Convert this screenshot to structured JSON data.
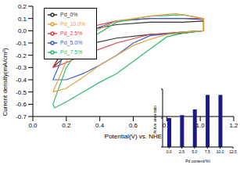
{
  "chart_data": [
    {
      "type": "line",
      "x_label": "Potential(V) vs. NHE",
      "y_label": "Current density(mA/cm²)",
      "xlim": [
        0,
        1.2
      ],
      "xticks": [
        {
          "value": 0,
          "label": "0.0"
        },
        0.2,
        0.4,
        0.6,
        0.8,
        {
          "value": 1,
          "label": "1.0"
        },
        1.2
      ],
      "ylim": [
        -0.7,
        0.2
      ],
      "yticks": [
        -0.7,
        -0.6,
        -0.5,
        -0.4,
        -0.3,
        -0.2,
        -0.1,
        {
          "value": 0,
          "label": "0.0"
        },
        0.1,
        0.2
      ],
      "legend": "upper left",
      "series": [
        {
          "name": "Pd_0%",
          "color": "#333333",
          "x": [
            0.12,
            0.2,
            0.3,
            0.5,
            0.7,
            0.9,
            1.02,
            1.02,
            0.9,
            0.7,
            0.5,
            0.3,
            0.2,
            0.12
          ],
          "values": [
            -0.3,
            -0.12,
            0.0,
            0.05,
            0.07,
            0.07,
            0.08,
            0.0,
            -0.02,
            -0.03,
            -0.06,
            -0.12,
            -0.2,
            -0.3
          ]
        },
        {
          "name": "Pd_2.5%",
          "color": "#e0443c",
          "x": [
            0.12,
            0.2,
            0.3,
            0.5,
            0.7,
            0.9,
            1.02,
            1.02,
            0.9,
            0.7,
            0.5,
            0.3,
            0.2,
            0.12
          ],
          "values": [
            -0.3,
            -0.1,
            0.02,
            0.08,
            0.1,
            0.1,
            0.1,
            0.0,
            -0.01,
            -0.03,
            -0.1,
            -0.2,
            -0.26,
            -0.3
          ]
        },
        {
          "name": "Pd_5.0%",
          "color": "#3a5fcd",
          "x": [
            0.12,
            0.2,
            0.3,
            0.5,
            0.7,
            0.9,
            1.02,
            1.02,
            0.9,
            0.7,
            0.6,
            0.5,
            0.4,
            0.3,
            0.2,
            0.12
          ],
          "values": [
            -0.4,
            -0.15,
            -0.02,
            0.08,
            0.1,
            0.1,
            0.09,
            0.0,
            -0.01,
            -0.04,
            -0.1,
            -0.2,
            -0.28,
            -0.35,
            -0.4,
            -0.4
          ]
        },
        {
          "name": "Pd_7.5%",
          "color": "#2ebd6f",
          "x": [
            0.12,
            0.2,
            0.3,
            0.5,
            0.7,
            0.9,
            1.02,
            1.02,
            0.9,
            0.8,
            0.7,
            0.6,
            0.5,
            0.4,
            0.3,
            0.2,
            0.13,
            0.12
          ],
          "values": [
            -0.6,
            -0.3,
            -0.1,
            0.07,
            0.12,
            0.13,
            0.1,
            0.0,
            -0.02,
            -0.05,
            -0.15,
            -0.25,
            -0.35,
            -0.42,
            -0.5,
            -0.58,
            -0.63,
            -0.6
          ]
        },
        {
          "name": "Pd_10.0%",
          "color": "#e8a13a",
          "x": [
            0.12,
            0.2,
            0.3,
            0.5,
            0.7,
            0.85,
            1.02,
            1.02,
            0.9,
            0.8,
            0.7,
            0.6,
            0.5,
            0.4,
            0.3,
            0.2,
            0.12
          ],
          "values": [
            -0.5,
            -0.25,
            -0.05,
            0.08,
            0.12,
            0.14,
            0.1,
            0.0,
            -0.01,
            -0.03,
            -0.07,
            -0.12,
            -0.2,
            -0.28,
            -0.38,
            -0.47,
            -0.5
          ]
        }
      ]
    },
    {
      "type": "bar",
      "x_label": "Pd content(%)",
      "y_label": "Active area ratio",
      "x": [
        0,
        2.5,
        5,
        7.5,
        10
      ],
      "values": [
        0.5,
        0.55,
        0.65,
        0.9,
        0.9
      ],
      "color": "#1a1a8c",
      "xlim": [
        -1.25,
        12.5
      ],
      "xticks": [
        {
          "value": 0,
          "label": "0.0"
        },
        2.5,
        {
          "value": 5,
          "label": "5.0"
        },
        7.5,
        {
          "value": 10,
          "label": "10.0"
        },
        12.5
      ],
      "ylim": [
        0,
        1
      ],
      "yticks": [
        0,
        0.5,
        1
      ],
      "tick_labels": "x"
    }
  ]
}
